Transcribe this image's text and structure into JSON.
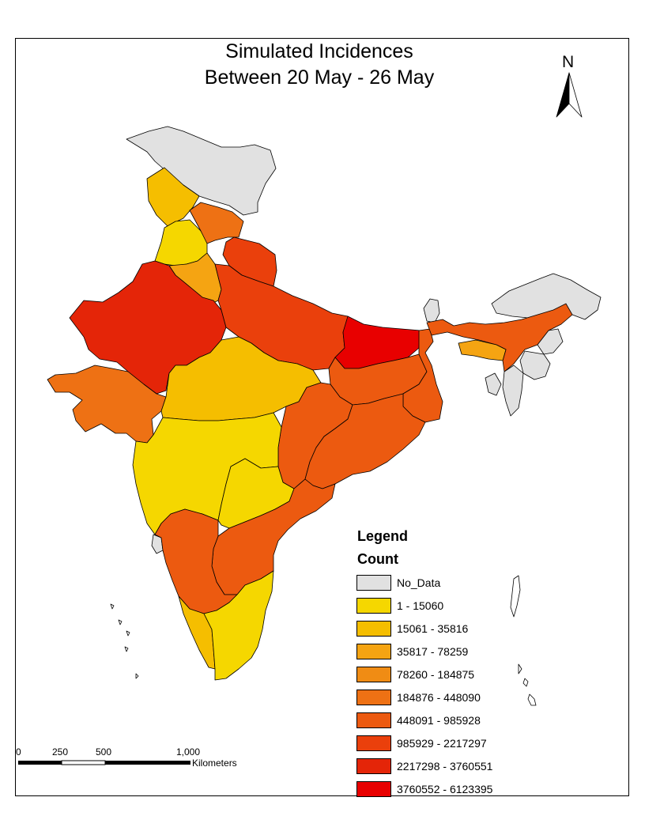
{
  "title": {
    "line1": "Simulated Incidences",
    "line2": "Between 20 May - 26 May"
  },
  "north_arrow": {
    "label": "N"
  },
  "legend": {
    "heading": "Legend",
    "subheading": "Count",
    "items": [
      {
        "label": "No_Data",
        "color": "#e1e1e1"
      },
      {
        "label": "1 - 15060",
        "color": "#f5d700"
      },
      {
        "label": "15061 - 35816",
        "color": "#f5be00"
      },
      {
        "label": "35817 - 78259",
        "color": "#f5a412"
      },
      {
        "label": "78260 - 184875",
        "color": "#f08c14"
      },
      {
        "label": "184876 - 448090",
        "color": "#ee7114"
      },
      {
        "label": "448091 - 985928",
        "color": "#ec5a10"
      },
      {
        "label": "985929 - 2217297",
        "color": "#ea400c"
      },
      {
        "label": "2217298 - 3760551",
        "color": "#e42508"
      },
      {
        "label": "3760552 - 6123395",
        "color": "#e80000"
      }
    ]
  },
  "scale_bar": {
    "ticks": [
      "0",
      "250",
      "500",
      "1,000"
    ],
    "unit": "Kilometers"
  }
}
